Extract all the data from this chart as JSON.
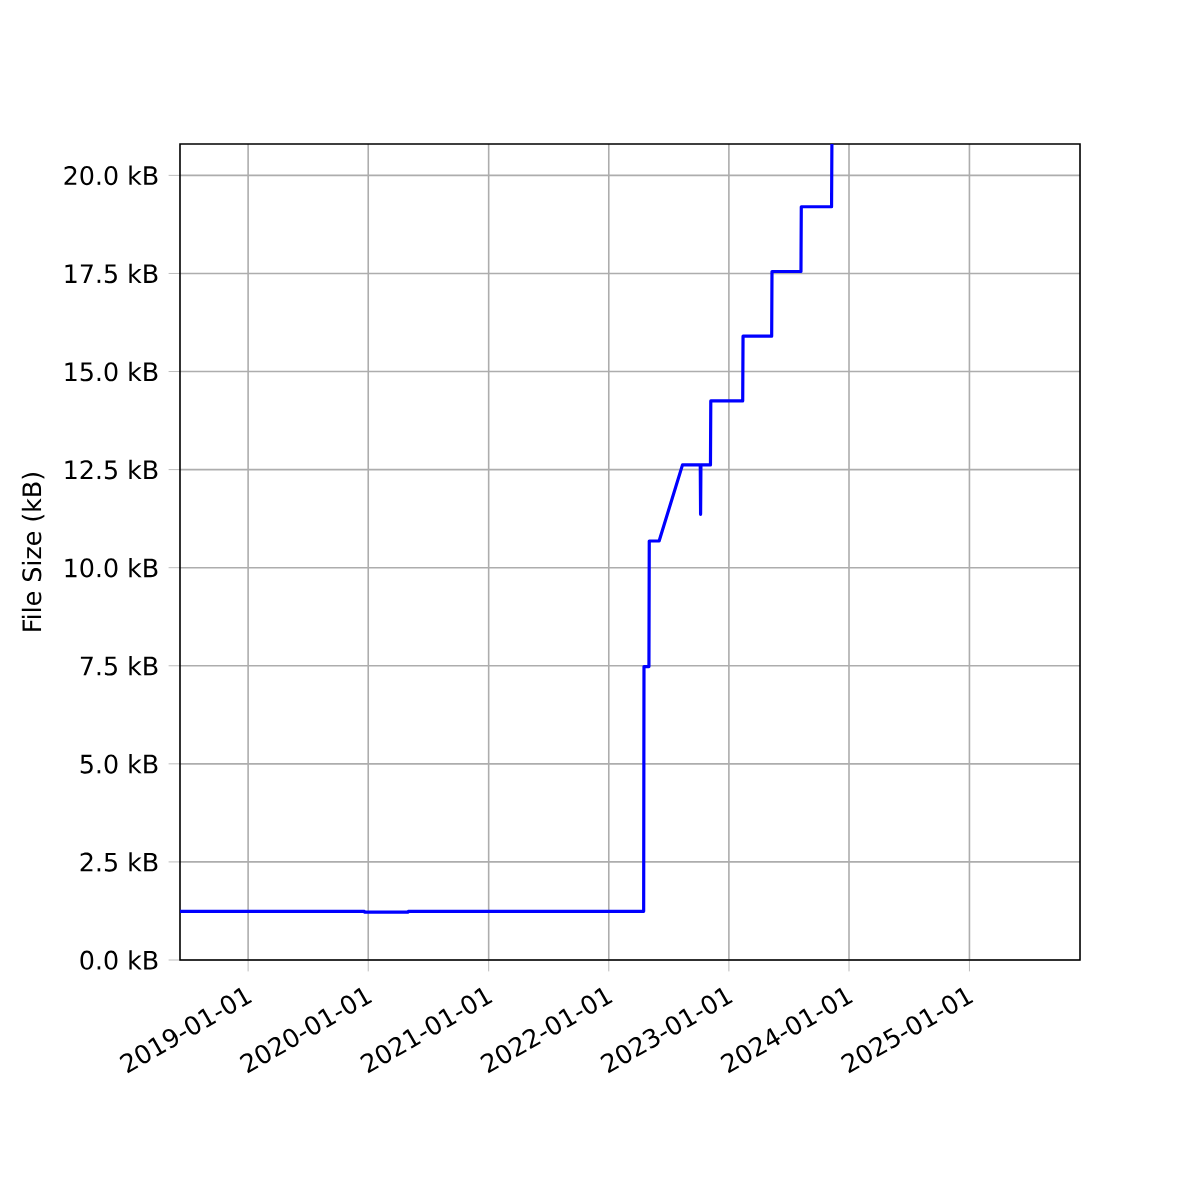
{
  "chart_data": {
    "type": "line",
    "ylabel": "File Size (kB)",
    "color": "#0000ff",
    "grid": true,
    "x": [
      "2018-06-08",
      "2019-12-20",
      "2019-12-21",
      "2020-05-01",
      "2020-05-02",
      "2022-04-17",
      "2022-04-18",
      "2022-05-03",
      "2022-05-04",
      "2022-06-03",
      "2022-08-13",
      "2022-10-06",
      "2022-10-07",
      "2022-10-08",
      "2022-11-06",
      "2022-11-07",
      "2023-02-12",
      "2023-02-13",
      "2023-05-11",
      "2023-05-12",
      "2023-08-08",
      "2023-08-09",
      "2023-11-09",
      "2023-11-10"
    ],
    "values": [
      1.24,
      1.24,
      1.22,
      1.22,
      1.24,
      1.24,
      7.48,
      7.48,
      10.68,
      10.68,
      12.62,
      12.62,
      11.36,
      12.62,
      12.62,
      14.25,
      14.25,
      15.9,
      15.9,
      17.55,
      17.55,
      19.2,
      19.2,
      20.8
    ],
    "xlim": [
      "2018-06-08",
      "2025-12-03"
    ],
    "ylim": [
      0,
      20.8
    ],
    "xticks": [
      "2019-01-01",
      "2020-01-01",
      "2021-01-01",
      "2022-01-01",
      "2023-01-01",
      "2024-01-01",
      "2025-01-01"
    ],
    "yticks": [
      {
        "value": 0,
        "label": "0.0 kB"
      },
      {
        "value": 2.5,
        "label": "2.5 kB"
      },
      {
        "value": 5,
        "label": "5.0 kB"
      },
      {
        "value": 7.5,
        "label": "7.5 kB"
      },
      {
        "value": 10,
        "label": "10.0 kB"
      },
      {
        "value": 12.5,
        "label": "12.5 kB"
      },
      {
        "value": 15,
        "label": "15.0 kB"
      },
      {
        "value": 17.5,
        "label": "17.5 kB"
      },
      {
        "value": 20,
        "label": "20.0 kB"
      }
    ]
  }
}
